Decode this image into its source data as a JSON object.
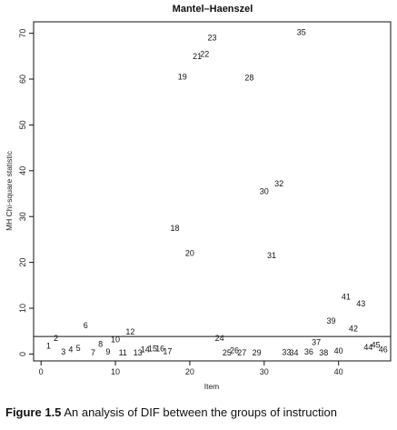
{
  "caption": {
    "label": "Figure 1.5",
    "text": "An analysis of DIF between the groups of instruction"
  },
  "chart_data": {
    "type": "scatter",
    "title": "Mantel–Haenszel",
    "xlabel": "Item",
    "ylabel": "MH Chi-square statistic",
    "xlim": [
      -1,
      47
    ],
    "ylim": [
      -1.5,
      72.5
    ],
    "xticks": [
      0,
      10,
      20,
      30,
      40
    ],
    "yticks": [
      0,
      10,
      20,
      30,
      40,
      50,
      60,
      70
    ],
    "reference_line": 3.84,
    "marker": "item-number",
    "points": [
      {
        "label": "1",
        "x": 1,
        "y": 1.8
      },
      {
        "label": "2",
        "x": 2,
        "y": 3.5
      },
      {
        "label": "3",
        "x": 3,
        "y": 0.5
      },
      {
        "label": "4",
        "x": 4,
        "y": 1.0
      },
      {
        "label": "5",
        "x": 5,
        "y": 1.3
      },
      {
        "label": "6",
        "x": 6,
        "y": 6.2
      },
      {
        "label": "7",
        "x": 7,
        "y": 0.3
      },
      {
        "label": "8",
        "x": 8,
        "y": 2.2
      },
      {
        "label": "9",
        "x": 9,
        "y": 0.5
      },
      {
        "label": "10",
        "x": 10,
        "y": 3.2
      },
      {
        "label": "11",
        "x": 11,
        "y": 0.3
      },
      {
        "label": "12",
        "x": 12,
        "y": 4.8
      },
      {
        "label": "13",
        "x": 13,
        "y": 0.3
      },
      {
        "label": "14",
        "x": 14,
        "y": 1.0
      },
      {
        "label": "15",
        "x": 15,
        "y": 1.2
      },
      {
        "label": "16",
        "x": 16,
        "y": 1.2
      },
      {
        "label": "17",
        "x": 17,
        "y": 0.6
      },
      {
        "label": "18",
        "x": 18,
        "y": 27.5
      },
      {
        "label": "19",
        "x": 19,
        "y": 60.5
      },
      {
        "label": "20",
        "x": 20,
        "y": 22.0
      },
      {
        "label": "21",
        "x": 21,
        "y": 65.0
      },
      {
        "label": "22",
        "x": 22,
        "y": 65.5
      },
      {
        "label": "23",
        "x": 23,
        "y": 69.0
      },
      {
        "label": "24",
        "x": 24,
        "y": 3.5
      },
      {
        "label": "25",
        "x": 25,
        "y": 0.3
      },
      {
        "label": "26",
        "x": 26,
        "y": 0.8
      },
      {
        "label": "27",
        "x": 27,
        "y": 0.3
      },
      {
        "label": "28",
        "x": 28,
        "y": 60.3
      },
      {
        "label": "29",
        "x": 29,
        "y": 0.3
      },
      {
        "label": "30",
        "x": 30,
        "y": 35.5
      },
      {
        "label": "31",
        "x": 31,
        "y": 21.5
      },
      {
        "label": "32",
        "x": 32,
        "y": 37.2
      },
      {
        "label": "33",
        "x": 33,
        "y": 0.4
      },
      {
        "label": "34",
        "x": 34,
        "y": 0.3
      },
      {
        "label": "35",
        "x": 35,
        "y": 70.2
      },
      {
        "label": "36",
        "x": 36,
        "y": 0.5
      },
      {
        "label": "37",
        "x": 37,
        "y": 2.6
      },
      {
        "label": "38",
        "x": 38,
        "y": 0.3
      },
      {
        "label": "39",
        "x": 39,
        "y": 7.2
      },
      {
        "label": "40",
        "x": 40,
        "y": 0.7
      },
      {
        "label": "41",
        "x": 41,
        "y": 12.5
      },
      {
        "label": "42",
        "x": 42,
        "y": 5.5
      },
      {
        "label": "43",
        "x": 43,
        "y": 11.0
      },
      {
        "label": "44",
        "x": 44,
        "y": 1.5
      },
      {
        "label": "45",
        "x": 45,
        "y": 2.0
      },
      {
        "label": "46",
        "x": 46,
        "y": 1.0
      }
    ]
  }
}
